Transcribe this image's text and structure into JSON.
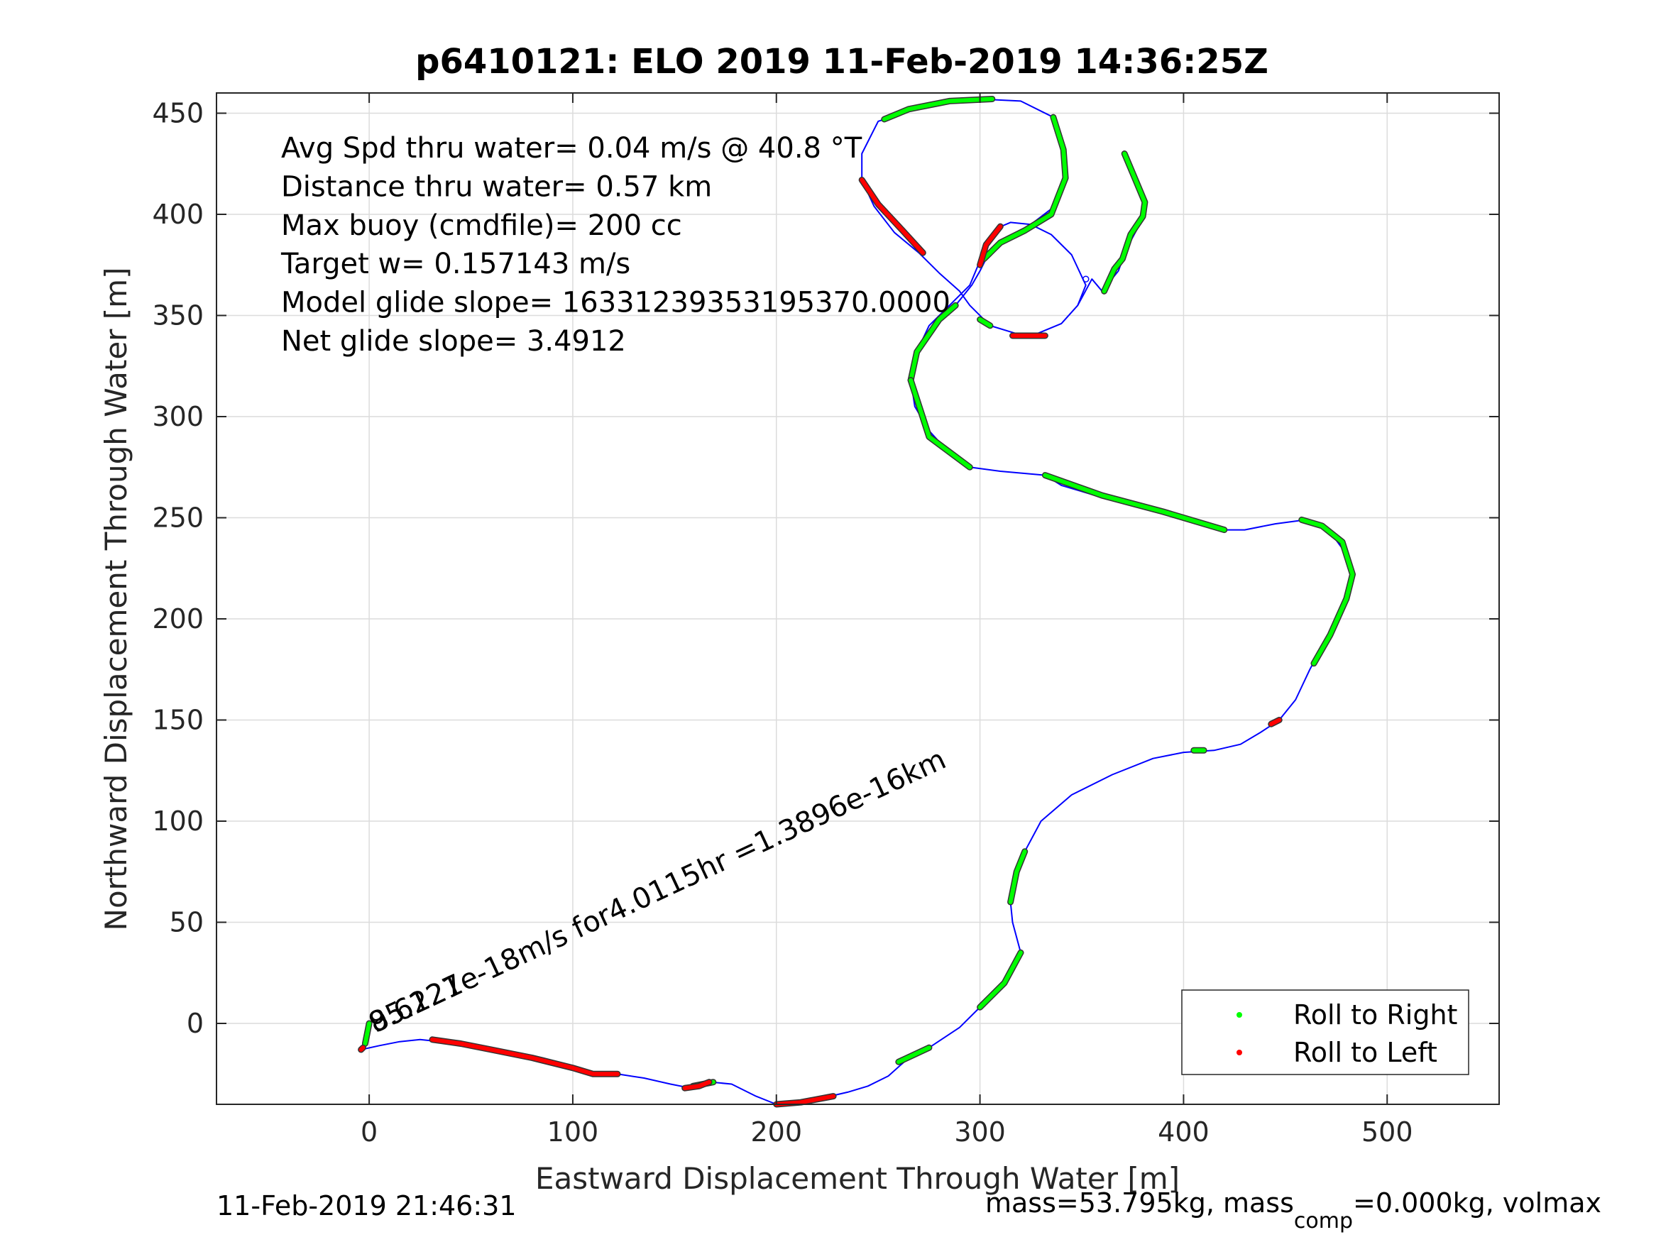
{
  "chart_data": {
    "type": "line",
    "title": "p6410121: ELO 2019 11-Feb-2019 14:36:25Z",
    "xlabel": "Eastward Displacement Through Water [m]",
    "ylabel": "Northward Displacement Through Water [m]",
    "xlim": [
      -75,
      555
    ],
    "ylim": [
      -40,
      460
    ],
    "x_ticks": [
      0,
      100,
      200,
      300,
      400,
      500
    ],
    "y_ticks": [
      0,
      50,
      100,
      150,
      200,
      250,
      300,
      350,
      400,
      450
    ],
    "grid": true,
    "annotations": [
      "Avg Spd thru water=  0.04 m/s @  40.8 °T",
      "Distance thru water=  0.57 km",
      "Max buoy (cmdfile)= 200 cc",
      "Target w= 0.157143 m/s",
      "Model glide slope= 16331239353195370.0000",
      "Net glide slope= 3.4912"
    ],
    "current_label": "9.6227e-18m/s for4.0115hr =1.3896e-16km",
    "current_label_overlap": "85.121",
    "footer_left": "11-Feb-2019 21:46:31",
    "footer_right": {
      "prefix": "mass=53.795kg, mass",
      "subscript": "comp",
      "suffix": "=0.000kg, volmax"
    },
    "legend": {
      "placement": "bottom-right",
      "entries": [
        {
          "label": "Roll to Right",
          "color": "#00ff00"
        },
        {
          "label": "Roll to Left",
          "color": "#ff0000"
        }
      ]
    },
    "colors": {
      "track": "#0000ff",
      "roll_right": "#00ff00",
      "roll_left": "#ff0000",
      "marker_outline": "#333333"
    },
    "track": [
      [
        -4,
        -13
      ],
      [
        5,
        -11
      ],
      [
        15,
        -9
      ],
      [
        25,
        -8
      ],
      [
        35,
        -9
      ],
      [
        45,
        -10
      ],
      [
        55,
        -12
      ],
      [
        70,
        -15
      ],
      [
        85,
        -17
      ],
      [
        100,
        -21
      ],
      [
        110,
        -25
      ],
      [
        122,
        -25
      ],
      [
        135,
        -27
      ],
      [
        148,
        -30
      ],
      [
        158,
        -32
      ],
      [
        168,
        -29
      ],
      [
        178,
        -30
      ],
      [
        190,
        -36
      ],
      [
        200,
        -40
      ],
      [
        212,
        -39
      ],
      [
        222,
        -37
      ],
      [
        235,
        -34
      ],
      [
        245,
        -31
      ],
      [
        255,
        -26
      ],
      [
        265,
        -17
      ],
      [
        275,
        -12
      ],
      [
        290,
        -2
      ],
      [
        302,
        10
      ],
      [
        312,
        20
      ],
      [
        320,
        35
      ],
      [
        316,
        50
      ],
      [
        315,
        60
      ],
      [
        318,
        75
      ],
      [
        322,
        85
      ],
      [
        330,
        100
      ],
      [
        345,
        113
      ],
      [
        365,
        123
      ],
      [
        385,
        131
      ],
      [
        400,
        134
      ],
      [
        415,
        135
      ],
      [
        428,
        138
      ],
      [
        438,
        144
      ],
      [
        447,
        150
      ],
      [
        455,
        160
      ],
      [
        462,
        175
      ],
      [
        470,
        190
      ],
      [
        480,
        210
      ],
      [
        483,
        222
      ],
      [
        480,
        232
      ],
      [
        472,
        243
      ],
      [
        460,
        249
      ],
      [
        445,
        247
      ],
      [
        430,
        244
      ],
      [
        420,
        244
      ],
      [
        400,
        250
      ],
      [
        380,
        256
      ],
      [
        360,
        260
      ],
      [
        340,
        266
      ],
      [
        332,
        271
      ],
      [
        310,
        273
      ],
      [
        295,
        275
      ],
      [
        285,
        282
      ],
      [
        275,
        293
      ],
      [
        268,
        305
      ],
      [
        266,
        318
      ],
      [
        268,
        330
      ],
      [
        275,
        345
      ],
      [
        285,
        355
      ],
      [
        295,
        365
      ],
      [
        300,
        377
      ],
      [
        302,
        385
      ],
      [
        308,
        393
      ],
      [
        315,
        396
      ],
      [
        325,
        395
      ],
      [
        335,
        390
      ],
      [
        345,
        380
      ],
      [
        352,
        365
      ],
      [
        348,
        355
      ],
      [
        340,
        346
      ],
      [
        328,
        341
      ],
      [
        318,
        341
      ],
      [
        305,
        345
      ],
      [
        295,
        355
      ],
      [
        290,
        362
      ],
      [
        280,
        371
      ],
      [
        270,
        381
      ],
      [
        258,
        391
      ],
      [
        248,
        404
      ],
      [
        242,
        417
      ],
      [
        242,
        430
      ],
      [
        250,
        446
      ],
      [
        262,
        450
      ],
      [
        280,
        455
      ],
      [
        300,
        457
      ],
      [
        320,
        456
      ],
      [
        336,
        448
      ],
      [
        341,
        432
      ],
      [
        342,
        418
      ],
      [
        338,
        405
      ],
      [
        325,
        395
      ],
      [
        312,
        388
      ],
      [
        303,
        378
      ],
      [
        300,
        372
      ],
      [
        296,
        365
      ],
      [
        288,
        355
      ],
      [
        280,
        348
      ]
    ],
    "track_tail": [
      [
        348,
        355
      ],
      [
        355,
        368
      ],
      [
        360,
        362
      ],
      [
        368,
        372
      ],
      [
        372,
        383
      ],
      [
        380,
        398
      ],
      [
        381,
        406
      ],
      [
        376,
        417
      ],
      [
        371,
        430
      ]
    ],
    "roll_right_segments": [
      [
        [
          -2,
          -10
        ],
        [
          -1,
          -5
        ],
        [
          0,
          0
        ]
      ],
      [
        [
          159,
          -31
        ],
        [
          169,
          -29
        ]
      ],
      [
        [
          260,
          -19
        ],
        [
          275,
          -12
        ]
      ],
      [
        [
          300,
          8
        ],
        [
          312,
          20
        ],
        [
          320,
          35
        ]
      ],
      [
        [
          315,
          60
        ],
        [
          318,
          75
        ],
        [
          322,
          85
        ]
      ],
      [
        [
          405,
          135
        ],
        [
          410,
          135
        ]
      ],
      [
        [
          464,
          178
        ],
        [
          472,
          192
        ],
        [
          480,
          210
        ],
        [
          483,
          222
        ],
        [
          478,
          238
        ],
        [
          468,
          246
        ],
        [
          458,
          249
        ]
      ],
      [
        [
          332,
          271
        ],
        [
          360,
          261
        ],
        [
          390,
          253
        ],
        [
          420,
          244
        ]
      ],
      [
        [
          266,
          318
        ],
        [
          269,
          332
        ],
        [
          280,
          348
        ],
        [
          288,
          355
        ]
      ],
      [
        [
          266,
          318
        ],
        [
          275,
          290
        ],
        [
          295,
          275
        ]
      ],
      [
        [
          253,
          447
        ],
        [
          265,
          452
        ],
        [
          285,
          456
        ],
        [
          306,
          457
        ]
      ],
      [
        [
          336,
          448
        ],
        [
          341,
          432
        ],
        [
          342,
          418
        ],
        [
          335,
          400
        ],
        [
          322,
          392
        ],
        [
          310,
          386
        ],
        [
          302,
          378
        ]
      ],
      [
        [
          361,
          362
        ],
        [
          366,
          373
        ],
        [
          370,
          378
        ],
        [
          374,
          390
        ],
        [
          380,
          399
        ],
        [
          381,
          406
        ],
        [
          376,
          418
        ],
        [
          371,
          430
        ]
      ],
      [
        [
          300,
          348
        ],
        [
          305,
          345
        ]
      ]
    ],
    "roll_left_segments": [
      [
        [
          -4,
          -13
        ],
        [
          -3,
          -12
        ]
      ],
      [
        [
          31,
          -8
        ],
        [
          45,
          -10
        ],
        [
          60,
          -13
        ],
        [
          80,
          -17
        ],
        [
          100,
          -22
        ],
        [
          110,
          -25
        ],
        [
          122,
          -25
        ]
      ],
      [
        [
          155,
          -32
        ],
        [
          162,
          -31
        ],
        [
          167,
          -29
        ]
      ],
      [
        [
          200,
          -40
        ],
        [
          212,
          -39
        ],
        [
          228,
          -36
        ]
      ],
      [
        [
          443,
          148
        ],
        [
          447,
          150
        ]
      ],
      [
        [
          242,
          417
        ],
        [
          250,
          405
        ],
        [
          262,
          392
        ],
        [
          272,
          381
        ]
      ],
      [
        [
          300,
          375
        ],
        [
          303,
          385
        ],
        [
          310,
          394
        ]
      ],
      [
        [
          316,
          340
        ],
        [
          332,
          340
        ]
      ]
    ]
  }
}
